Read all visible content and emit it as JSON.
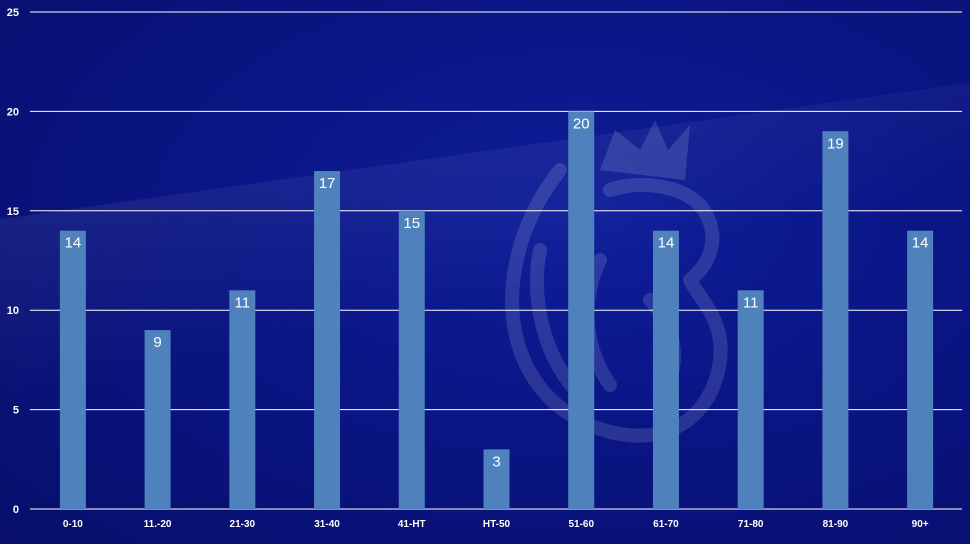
{
  "chart_data": {
    "type": "bar",
    "title": "",
    "xlabel": "",
    "ylabel": "",
    "categories": [
      "0-10",
      "11.-20",
      "21-30",
      "31-40",
      "41-HT",
      "HT-50",
      "51-60",
      "61-70",
      "71-80",
      "81-90",
      "90+"
    ],
    "values": [
      14,
      9,
      11,
      17,
      15,
      3,
      20,
      14,
      11,
      19,
      14
    ],
    "ylim": [
      0,
      25
    ],
    "yticks": [
      0,
      5,
      10,
      15,
      20,
      25
    ],
    "grid": true,
    "bar_color": "#4f81bd",
    "background_color": "#0a1585",
    "watermark": "premier-league-lion-logo"
  }
}
